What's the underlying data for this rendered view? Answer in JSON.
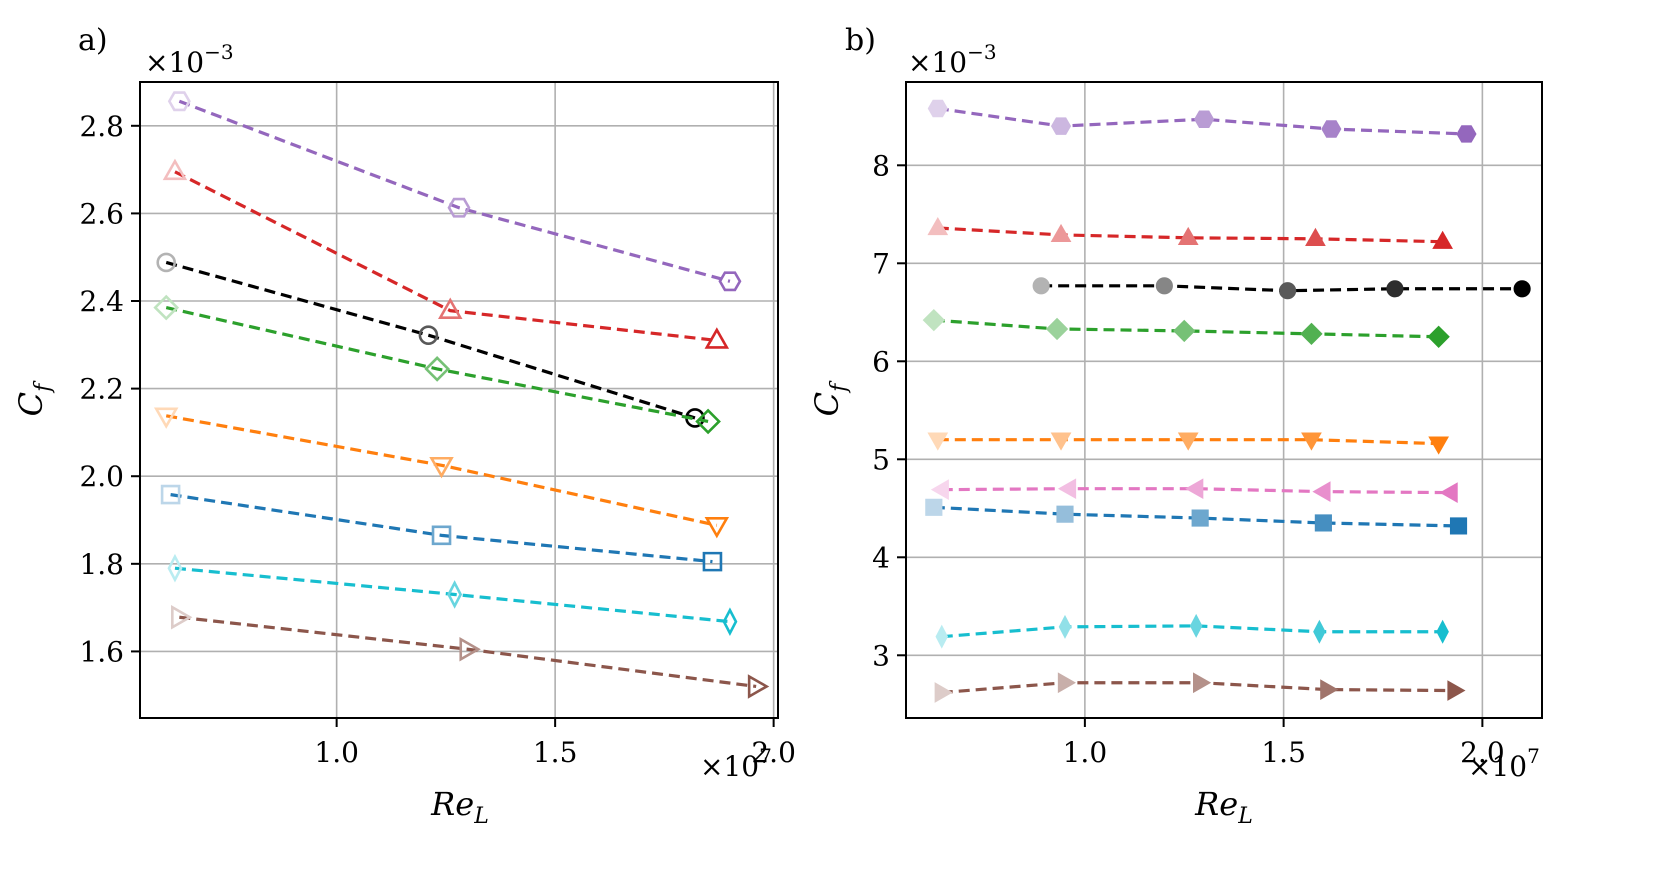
{
  "chart_data": [
    {
      "type": "line",
      "panel_label": "a)",
      "xlabel": "Re_L",
      "ylabel": "C_f",
      "x_multiplier": "×10^7",
      "y_multiplier": "×10^-3",
      "xlim": [
        0.55,
        2.01
      ],
      "ylim": [
        1.448,
        2.9
      ],
      "xticks": [
        1.0,
        1.5,
        2.0
      ],
      "xtick_labels": [
        "1.0",
        "1.5",
        "2.0"
      ],
      "yticks": [
        1.6,
        1.8,
        2.0,
        2.2,
        2.4,
        2.6,
        2.8
      ],
      "ytick_labels": [
        "1.6",
        "1.8",
        "2.0",
        "2.2",
        "2.4",
        "2.6",
        "2.8"
      ],
      "grid": true,
      "marker_fill": "none",
      "series": [
        {
          "color": "#9467bd",
          "marker": "hexagon",
          "x": [
            0.64,
            1.28,
            1.9
          ],
          "y": [
            2.856,
            2.613,
            2.445
          ]
        },
        {
          "color": "#d62728",
          "marker": "triangle-up",
          "x": [
            0.63,
            1.26,
            1.87
          ],
          "y": [
            2.695,
            2.378,
            2.31
          ]
        },
        {
          "color": "#000000",
          "marker": "circle",
          "x": [
            0.61,
            1.21,
            1.82
          ],
          "y": [
            2.488,
            2.322,
            2.133
          ]
        },
        {
          "color": "#2ca02c",
          "marker": "diamond",
          "x": [
            0.61,
            1.23,
            1.85
          ],
          "y": [
            2.385,
            2.245,
            2.125
          ]
        },
        {
          "color": "#ff7f0e",
          "marker": "triangle-down",
          "x": [
            0.61,
            1.24,
            1.87
          ],
          "y": [
            2.138,
            2.025,
            1.888
          ]
        },
        {
          "color": "#1f77b4",
          "marker": "square",
          "x": [
            0.62,
            1.24,
            1.86
          ],
          "y": [
            1.958,
            1.865,
            1.805
          ]
        },
        {
          "color": "#17becf",
          "marker": "thin-diamond",
          "x": [
            0.63,
            1.27,
            1.9
          ],
          "y": [
            1.79,
            1.73,
            1.668
          ]
        },
        {
          "color": "#8c564b",
          "marker": "triangle-right",
          "x": [
            0.64,
            1.3,
            1.96
          ],
          "y": [
            1.678,
            1.605,
            1.52
          ]
        }
      ]
    },
    {
      "type": "line",
      "panel_label": "b)",
      "xlabel": "Re_L",
      "ylabel": "C_f",
      "x_multiplier": "×10^7",
      "y_multiplier": "×10^-3",
      "xlim": [
        0.55,
        2.15
      ],
      "ylim": [
        2.36,
        8.85
      ],
      "xticks": [
        1.0,
        1.5,
        2.0
      ],
      "xtick_labels": [
        "1.0",
        "1.5",
        "2.0"
      ],
      "yticks": [
        3,
        4,
        5,
        6,
        7,
        8
      ],
      "ytick_labels": [
        "3",
        "4",
        "5",
        "6",
        "7",
        "8"
      ],
      "grid": true,
      "marker_fill": "filled",
      "series": [
        {
          "color": "#9467bd",
          "marker": "hexagon",
          "x": [
            0.63,
            0.94,
            1.3,
            1.62,
            1.96
          ],
          "y": [
            8.58,
            8.4,
            8.47,
            8.37,
            8.32
          ]
        },
        {
          "color": "#d62728",
          "marker": "triangle-up",
          "x": [
            0.63,
            0.94,
            1.26,
            1.58,
            1.9
          ],
          "y": [
            7.36,
            7.29,
            7.26,
            7.25,
            7.22
          ]
        },
        {
          "color": "#000000",
          "marker": "circle",
          "x": [
            0.89,
            1.2,
            1.51,
            1.78,
            2.1
          ],
          "y": [
            6.77,
            6.77,
            6.72,
            6.74,
            6.74
          ]
        },
        {
          "color": "#2ca02c",
          "marker": "diamond",
          "x": [
            0.62,
            0.93,
            1.25,
            1.57,
            1.89
          ],
          "y": [
            6.42,
            6.33,
            6.31,
            6.28,
            6.25
          ]
        },
        {
          "color": "#ff7f0e",
          "marker": "triangle-down",
          "x": [
            0.63,
            0.94,
            1.26,
            1.57,
            1.89
          ],
          "y": [
            5.2,
            5.2,
            5.2,
            5.2,
            5.16
          ]
        },
        {
          "color": "#e377c2",
          "marker": "triangle-left",
          "x": [
            0.64,
            0.96,
            1.28,
            1.6,
            1.92
          ],
          "y": [
            4.69,
            4.7,
            4.7,
            4.67,
            4.66
          ]
        },
        {
          "color": "#1f77b4",
          "marker": "square",
          "x": [
            0.62,
            0.95,
            1.29,
            1.6,
            1.94
          ],
          "y": [
            4.51,
            4.44,
            4.4,
            4.35,
            4.32
          ]
        },
        {
          "color": "#17becf",
          "marker": "thin-diamond",
          "x": [
            0.64,
            0.95,
            1.28,
            1.59,
            1.9
          ],
          "y": [
            3.19,
            3.29,
            3.3,
            3.24,
            3.24
          ]
        },
        {
          "color": "#8c564b",
          "marker": "triangle-right",
          "x": [
            0.64,
            0.95,
            1.29,
            1.61,
            1.93
          ],
          "y": [
            2.62,
            2.72,
            2.72,
            2.65,
            2.64
          ]
        }
      ]
    }
  ]
}
